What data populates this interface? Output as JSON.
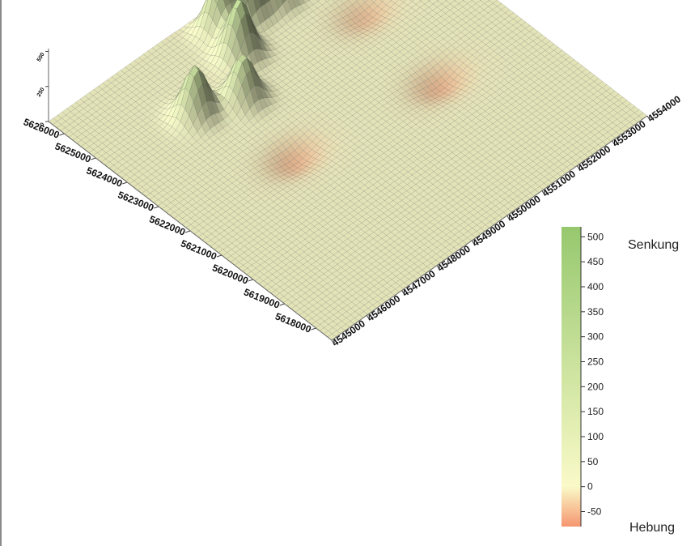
{
  "chart_data": {
    "type": "surface3d",
    "title": "",
    "x_axis": {
      "ticks": [
        4545000,
        4546000,
        4547000,
        4548000,
        4549000,
        4550000,
        4551000,
        4552000,
        4553000,
        4554000
      ],
      "range": [
        4545000,
        4554000
      ]
    },
    "y_axis": {
      "ticks": [
        5618000,
        5619000,
        5620000,
        5621000,
        5622000,
        5623000,
        5624000,
        5625000,
        5626000
      ],
      "tick_labels": [
        "5618000",
        "5619000",
        "5620000",
        "5621000",
        "5622000",
        "5623000",
        "5624000",
        "5625000",
        "5626000"
      ],
      "range": [
        5617500,
        5626500
      ]
    },
    "z_axis": {
      "ticks": [
        0,
        250,
        500
      ],
      "range": [
        0,
        520
      ]
    },
    "surface_features": [
      {
        "kind": "peak",
        "x": 4549100,
        "y": 5625000,
        "z": 400
      },
      {
        "kind": "peak",
        "x": 4550000,
        "y": 5625800,
        "z": 500
      },
      {
        "kind": "peak",
        "x": 4550700,
        "y": 5625700,
        "z": 460
      },
      {
        "kind": "peak",
        "x": 4549300,
        "y": 5625900,
        "z": 350
      },
      {
        "kind": "peak",
        "x": 4547300,
        "y": 5624400,
        "z": 350
      },
      {
        "kind": "peak",
        "x": 4548300,
        "y": 5624000,
        "z": 320
      },
      {
        "kind": "peak",
        "x": 4551700,
        "y": 5625600,
        "z": 200
      },
      {
        "kind": "trough",
        "x": 4548000,
        "y": 5622000,
        "z": -60
      },
      {
        "kind": "trough",
        "x": 4551800,
        "y": 5624000,
        "z": -50
      },
      {
        "kind": "trough",
        "x": 4551600,
        "y": 5621400,
        "z": -60
      },
      {
        "kind": "trough",
        "x": 4552400,
        "y": 5626300,
        "z": -55
      },
      {
        "kind": "trough",
        "x": 4549600,
        "y": 5626500,
        "z": -50
      }
    ],
    "colorbar": {
      "min": -80,
      "max": 520,
      "ticks": [
        500,
        450,
        400,
        350,
        300,
        250,
        200,
        150,
        100,
        50,
        0,
        -50
      ],
      "colors": {
        "high": "#96c86e",
        "zero": "#fafac8",
        "low": "#f59670"
      },
      "top_label": "Senkung",
      "bottom_label": "Hebung"
    },
    "grid": true,
    "legend_position": "right"
  }
}
